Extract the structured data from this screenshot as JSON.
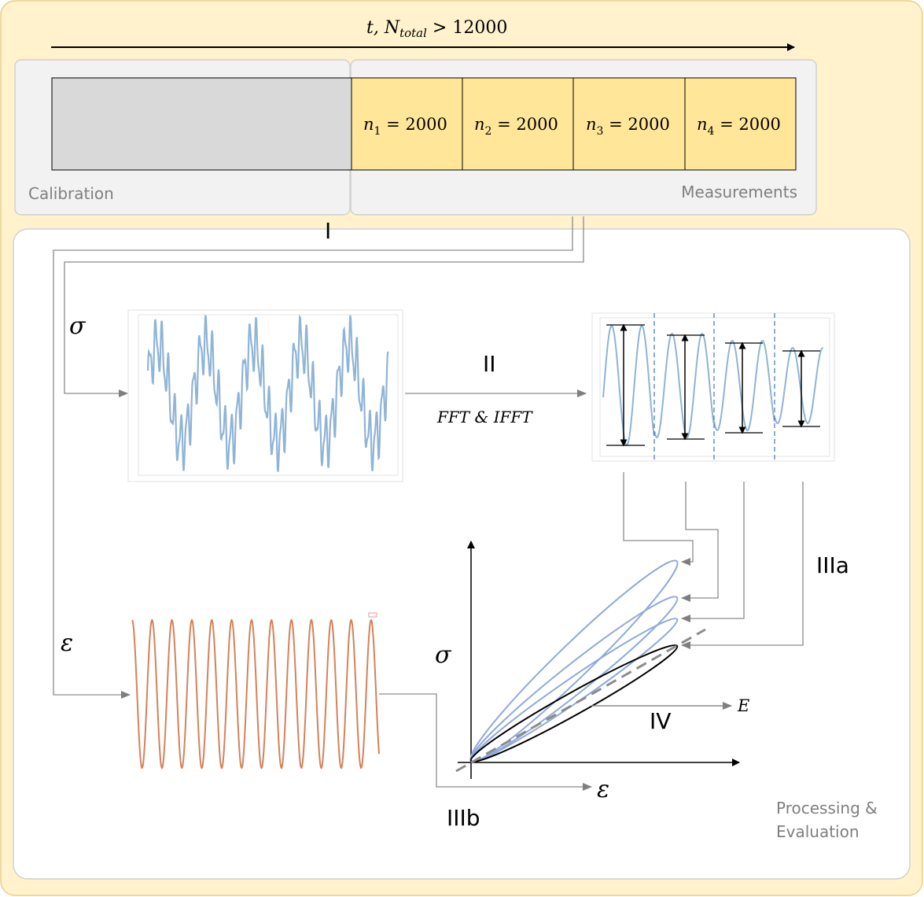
{
  "timeline": {
    "label_main": "t, N",
    "label_sub": "total",
    "label_rest": " > 12000"
  },
  "segments": [
    {
      "n": "n",
      "sub": "1",
      "rest": " = 2000"
    },
    {
      "n": "n",
      "sub": "2",
      "rest": " = 2000"
    },
    {
      "n": "n",
      "sub": "3",
      "rest": " = 2000"
    },
    {
      "n": "n",
      "sub": "4",
      "rest": " = 2000"
    }
  ],
  "calibration_label": "Calibration",
  "measurements_label": "Measurements",
  "processing_label_line1": "Processing &",
  "processing_label_line2": "Evaluation",
  "steps": {
    "I": "I",
    "II": "II",
    "IIIa": "IIIa",
    "IIIb": "IIIb",
    "IV": "IV"
  },
  "fft_label": "FFT & IFFT",
  "symbols": {
    "sigma": "σ",
    "epsilon": "ε",
    "E": "E"
  },
  "colors": {
    "outer_bg": "#fff2cc",
    "outer_border": "#e8cf8a",
    "segment_fill": "#ffe699",
    "calib_fill": "#d9d9d9",
    "panel_gray": "#f2f2f2",
    "stress_signal": "#8fb4d6",
    "strain_signal": "#d4825a",
    "hysteresis": "#8ea9db"
  }
}
